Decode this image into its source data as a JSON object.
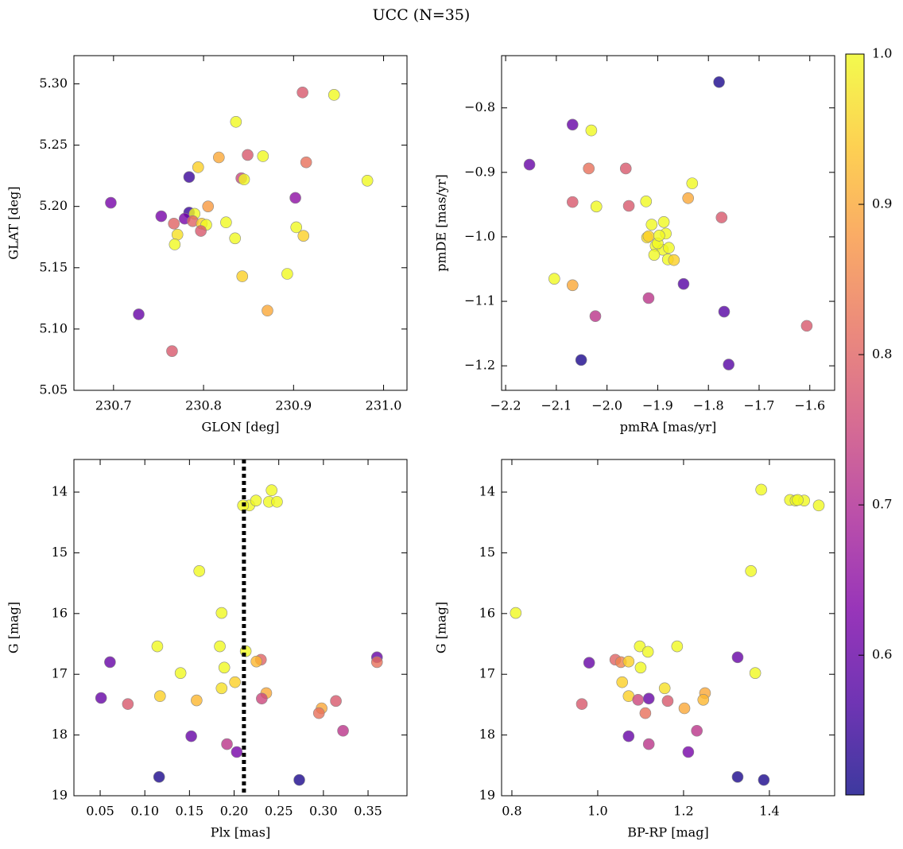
{
  "title": "UCC (N=35)",
  "colorbar": {
    "colormap": "plasma",
    "clim": [
      0.507,
      1.0
    ],
    "ticks": [
      0.6,
      0.7,
      0.8,
      0.9,
      {
        "value": 1.0,
        "label": "1.0"
      }
    ]
  },
  "chart_data": [
    {
      "type": "scatter",
      "xlabel": "GLON [deg]",
      "ylabel": "GLAT [deg]",
      "xlim": [
        230.656,
        231.026
      ],
      "ylim": [
        5.05,
        5.323
      ],
      "xticks": [
        230.7,
        230.8,
        230.9,
        {
          "value": 231.0,
          "label": "231.0"
        }
      ],
      "yticks": [
        5.05,
        {
          "value": 5.1,
          "label": "5.10"
        },
        5.15,
        {
          "value": 5.2,
          "label": "5.20"
        },
        5.25,
        {
          "value": 5.3,
          "label": "5.30"
        }
      ],
      "x": [
        230.91,
        230.945,
        230.836,
        230.849,
        230.866,
        230.817,
        230.914,
        230.794,
        230.842,
        230.845,
        230.982,
        230.784,
        230.902,
        230.697,
        230.805,
        230.784,
        230.79,
        230.753,
        230.779,
        230.788,
        230.825,
        230.767,
        230.798,
        230.803,
        230.903,
        230.797,
        230.771,
        230.911,
        230.835,
        230.768,
        230.843,
        230.893,
        230.871,
        230.728,
        230.765
      ],
      "y": [
        5.293,
        5.291,
        5.269,
        5.242,
        5.241,
        5.24,
        5.236,
        5.232,
        5.223,
        5.222,
        5.221,
        5.224,
        5.207,
        5.203,
        5.2,
        5.195,
        5.194,
        5.192,
        5.19,
        5.188,
        5.187,
        5.186,
        5.186,
        5.185,
        5.183,
        5.18,
        5.177,
        5.176,
        5.174,
        5.169,
        5.143,
        5.145,
        5.115,
        5.112,
        5.082
      ],
      "c": [
        0.78,
        1.0,
        1.0,
        0.78,
        1.0,
        0.9,
        0.82,
        0.95,
        0.75,
        1.0,
        1.0,
        0.55,
        0.65,
        0.62,
        0.88,
        0.55,
        1.0,
        0.62,
        0.62,
        0.8,
        1.0,
        0.8,
        0.95,
        1.0,
        1.0,
        0.78,
        0.97,
        0.95,
        1.0,
        1.0,
        0.95,
        1.0,
        0.9,
        0.6,
        0.78
      ]
    },
    {
      "type": "scatter",
      "xlabel": "pmRA [mas/yr]",
      "ylabel": "pmDE [mas/yr]",
      "xlim": [
        -2.208,
        -1.551
      ],
      "ylim": [
        -1.238,
        -0.719
      ],
      "xticks": [
        {
          "value": -2.2,
          "label": "−2.2"
        },
        {
          "value": -2.1,
          "label": "−2.1"
        },
        {
          "value": -2.0,
          "label": "−2.0"
        },
        {
          "value": -1.9,
          "label": "−1.9"
        },
        {
          "value": -1.8,
          "label": "−1.8"
        },
        {
          "value": -1.7,
          "label": "−1.7"
        },
        {
          "value": -1.6,
          "label": "−1.6"
        }
      ],
      "yticks": [
        {
          "value": -1.2,
          "label": "−1.2"
        },
        {
          "value": -1.1,
          "label": "−1.1"
        },
        {
          "value": -1.0,
          "label": "−1.0"
        },
        {
          "value": -0.9,
          "label": "−0.9"
        },
        {
          "value": -0.8,
          "label": "−0.8"
        }
      ],
      "x": [
        -1.779,
        -2.068,
        -2.031,
        -2.153,
        -2.036,
        -1.963,
        -1.832,
        -1.923,
        -1.84,
        -2.068,
        -2.021,
        -1.957,
        -1.774,
        -1.912,
        -1.888,
        -1.884,
        -1.921,
        -1.918,
        -1.904,
        -1.89,
        -1.878,
        -1.907,
        -1.88,
        -1.868,
        -2.104,
        -2.068,
        -1.849,
        -1.918,
        -1.769,
        -2.023,
        -1.606,
        -2.051,
        -1.76,
        -1.9,
        -1.897
      ],
      "y": [
        -0.76,
        -0.826,
        -0.835,
        -0.888,
        -0.894,
        -0.894,
        -0.917,
        -0.945,
        -0.94,
        -0.946,
        -0.953,
        -0.952,
        -0.97,
        -0.981,
        -0.977,
        -0.995,
        -1.001,
        -0.999,
        -1.014,
        -1.02,
        -1.017,
        -1.028,
        -1.035,
        -1.036,
        -1.065,
        -1.075,
        -1.073,
        -1.095,
        -1.116,
        -1.123,
        -1.138,
        -1.191,
        -1.198,
        -1.01,
        -0.998
      ],
      "c": [
        0.52,
        0.6,
        1.0,
        0.6,
        0.82,
        0.78,
        1.0,
        1.0,
        0.9,
        0.78,
        1.0,
        0.78,
        0.78,
        1.0,
        1.0,
        1.0,
        0.97,
        0.95,
        1.0,
        1.0,
        1.0,
        1.0,
        1.0,
        0.95,
        1.0,
        0.9,
        0.58,
        0.72,
        0.58,
        0.72,
        0.78,
        0.52,
        0.58,
        1.0,
        1.0
      ]
    },
    {
      "type": "scatter",
      "xlabel": "Plx [mas]",
      "ylabel": "G [mag]",
      "y_inverted": true,
      "xlim": [
        0.0206,
        0.3936
      ],
      "ylim": [
        13.463,
        19
      ],
      "xticks": [
        0.05,
        {
          "value": 0.1,
          "label": "0.10"
        },
        0.15,
        {
          "value": 0.2,
          "label": "0.20"
        },
        0.25,
        {
          "value": 0.3,
          "label": "0.30"
        },
        0.35
      ],
      "yticks": [
        14,
        15,
        16,
        17,
        18,
        19
      ],
      "vline": {
        "x": 0.211,
        "color": "#000000"
      },
      "x": [
        0.242,
        0.217,
        0.2245,
        0.239,
        0.248,
        0.161,
        0.186,
        0.114,
        0.184,
        0.213,
        0.061,
        0.23,
        0.225,
        0.36,
        0.36,
        0.189,
        0.14,
        0.201,
        0.186,
        0.051,
        0.117,
        0.158,
        0.236,
        0.231,
        0.081,
        0.314,
        0.298,
        0.295,
        0.322,
        0.152,
        0.192,
        0.203,
        0.116,
        0.273,
        0.21
      ],
      "y": [
        13.97,
        14.22,
        14.14,
        14.16,
        14.16,
        15.3,
        15.99,
        16.54,
        16.54,
        16.62,
        16.8,
        16.76,
        16.79,
        16.72,
        16.8,
        16.89,
        16.98,
        17.13,
        17.23,
        17.39,
        17.36,
        17.43,
        17.31,
        17.4,
        17.49,
        17.44,
        17.56,
        17.64,
        17.93,
        18.02,
        18.15,
        18.28,
        18.69,
        18.74,
        14.22
      ],
      "c": [
        1.0,
        1.0,
        1.0,
        1.0,
        1.0,
        1.0,
        1.0,
        1.0,
        1.0,
        1.0,
        0.6,
        0.8,
        0.92,
        0.6,
        0.82,
        1.0,
        1.0,
        0.95,
        0.97,
        0.6,
        0.95,
        0.92,
        0.9,
        0.75,
        0.78,
        0.78,
        0.9,
        0.82,
        0.72,
        0.6,
        0.72,
        0.62,
        0.52,
        0.52,
        1.0
      ]
    },
    {
      "type": "scatter",
      "xlabel": "BP-RP [mag]",
      "ylabel": "G [mag]",
      "y_inverted": true,
      "xlim": [
        0.776,
        1.552
      ],
      "ylim": [
        13.463,
        19
      ],
      "xticks": [
        0.8,
        {
          "value": 1.0,
          "label": "1.0"
        },
        1.2,
        1.4
      ],
      "yticks": [
        14,
        15,
        16,
        17,
        18,
        19
      ],
      "x": [
        1.381,
        1.448,
        1.461,
        1.481,
        1.515,
        1.357,
        0.809,
        1.098,
        1.185,
        1.117,
        0.98,
        1.041,
        1.054,
        1.072,
        1.326,
        1.1,
        1.367,
        1.057,
        1.156,
        1.072,
        1.094,
        1.119,
        1.25,
        1.246,
        1.163,
        0.963,
        1.202,
        1.111,
        1.231,
        1.072,
        1.119,
        1.211,
        1.326,
        1.387,
        1.466
      ],
      "y": [
        13.96,
        14.13,
        14.14,
        14.14,
        14.22,
        15.3,
        15.99,
        16.54,
        16.54,
        16.63,
        16.81,
        16.76,
        16.8,
        16.79,
        16.72,
        16.89,
        16.98,
        17.13,
        17.23,
        17.36,
        17.42,
        17.4,
        17.31,
        17.42,
        17.44,
        17.49,
        17.56,
        17.64,
        17.93,
        18.02,
        18.15,
        18.28,
        18.69,
        18.74,
        14.13
      ],
      "c": [
        1.0,
        1.0,
        1.0,
        1.0,
        1.0,
        1.0,
        1.0,
        1.0,
        1.0,
        1.0,
        0.6,
        0.8,
        0.85,
        0.95,
        0.6,
        1.0,
        1.0,
        0.95,
        0.97,
        0.95,
        0.75,
        0.6,
        0.9,
        0.92,
        0.78,
        0.78,
        0.9,
        0.82,
        0.72,
        0.6,
        0.72,
        0.62,
        0.52,
        0.52,
        1.0
      ]
    }
  ]
}
